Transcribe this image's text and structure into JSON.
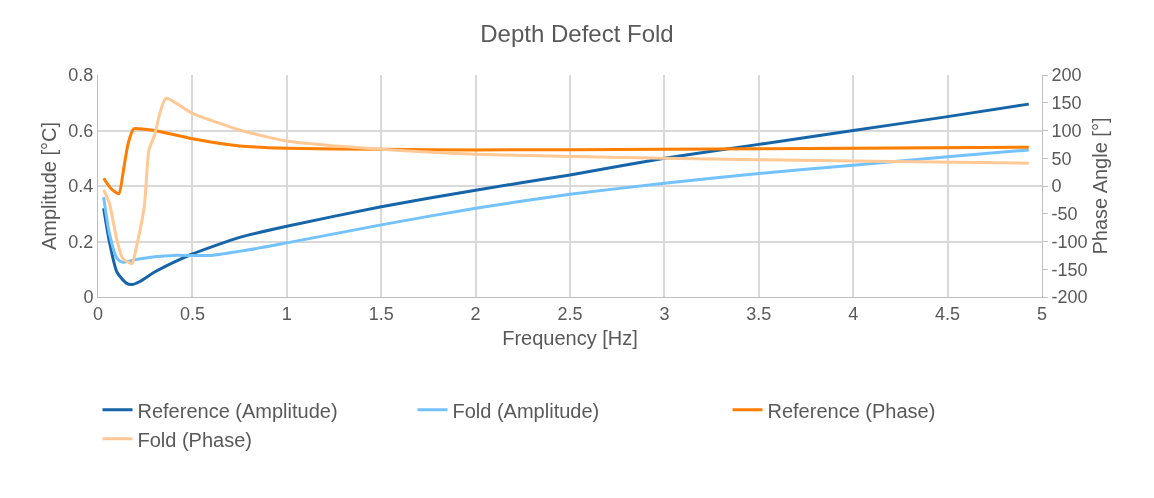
{
  "chart_data": {
    "type": "line",
    "title": "Depth Defect Fold",
    "xlabel": "Frequency [Hz]",
    "ylabel": "Amplitude [°C]",
    "y2label": "Phase Angle [°]",
    "xlim": [
      0,
      5
    ],
    "xticks": [
      0,
      0.5,
      1,
      1.5,
      2,
      2.5,
      3,
      3.5,
      4,
      4.5,
      5
    ],
    "ylim": [
      0,
      0.8
    ],
    "yticks": [
      0,
      0.2,
      0.4,
      0.6,
      0.8
    ],
    "y2lim": [
      -200,
      200
    ],
    "y2ticks": [
      -200,
      -150,
      -100,
      -50,
      0,
      50,
      100,
      150,
      200
    ],
    "grid": true,
    "legend": "bottom",
    "marker": "none",
    "line_style": "solid",
    "series": [
      {
        "name": "Reference (Amplitude)",
        "color": "#1565a8",
        "x": [
          0.03,
          0.06,
          0.1,
          0.15,
          0.18,
          0.22,
          0.3,
          0.4,
          0.5,
          0.75,
          1,
          1.5,
          2,
          2.5,
          3,
          3.5,
          4,
          4.5,
          4.93
        ],
        "values": [
          0.32,
          0.2,
          0.09,
          0.05,
          0.045,
          0.055,
          0.09,
          0.125,
          0.155,
          0.215,
          0.255,
          0.325,
          0.385,
          0.44,
          0.5,
          0.55,
          0.6,
          0.65,
          0.695
        ]
      },
      {
        "name": "Fold (Amplitude)",
        "color": "#74c2fb",
        "x": [
          0.03,
          0.06,
          0.1,
          0.13,
          0.2,
          0.3,
          0.4,
          0.6,
          0.8,
          1,
          1.5,
          2,
          2.5,
          3,
          3.5,
          4,
          4.5,
          4.93
        ],
        "values": [
          0.36,
          0.23,
          0.14,
          0.125,
          0.135,
          0.145,
          0.15,
          0.15,
          0.17,
          0.195,
          0.26,
          0.32,
          0.37,
          0.41,
          0.445,
          0.475,
          0.505,
          0.53
        ]
      },
      {
        "name": "Reference (Phase)",
        "color": "#ff7d00",
        "axis": "y2",
        "x": [
          0.03,
          0.07,
          0.11,
          0.135,
          0.16,
          0.19,
          0.22,
          0.3,
          0.5,
          0.75,
          1,
          1.5,
          2,
          3,
          4,
          4.93
        ],
        "values": [
          14,
          -5,
          -14,
          29,
          77,
          103,
          103,
          100,
          85,
          72,
          68,
          66,
          65,
          66,
          68,
          70
        ]
      },
      {
        "name": "Fold (Phase)",
        "color": "#ffc894",
        "axis": "y2",
        "x": [
          0.03,
          0.06,
          0.1,
          0.13,
          0.18,
          0.2,
          0.245,
          0.27,
          0.3,
          0.33,
          0.36,
          0.5,
          0.75,
          1,
          1.5,
          2,
          3,
          4,
          4.93
        ],
        "values": [
          -7,
          -31,
          -97,
          -130,
          -140,
          -115,
          -37,
          65,
          92,
          134,
          158,
          131,
          101,
          81,
          66,
          57,
          50,
          45,
          41
        ]
      }
    ]
  }
}
